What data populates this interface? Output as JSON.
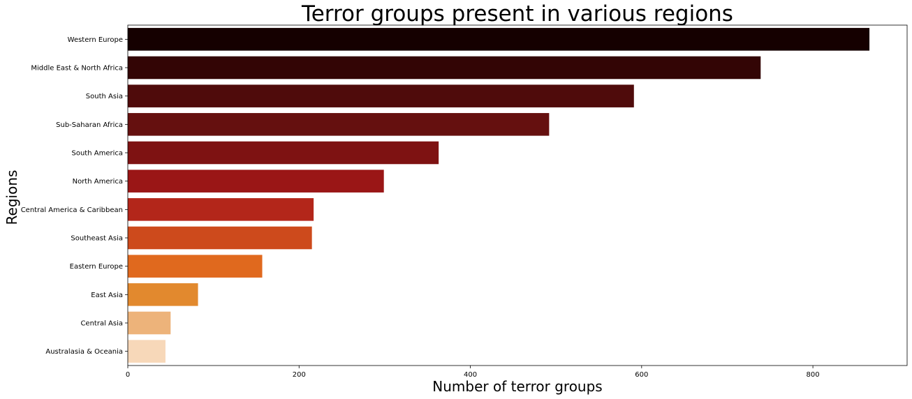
{
  "chart_data": {
    "type": "bar",
    "orientation": "horizontal",
    "title": "Terror groups present in various regions",
    "xlabel": "Number of terror groups",
    "ylabel": "Regions",
    "categories": [
      "Western Europe",
      "Middle East & North Africa",
      "South Asia",
      "Sub-Saharan Africa",
      "South America",
      "North America",
      "Central America & Caribbean",
      "Southeast Asia",
      "Eastern Europe",
      "East Asia",
      "Central Asia",
      "Australasia & Oceania"
    ],
    "values": [
      866,
      739,
      591,
      492,
      363,
      299,
      217,
      215,
      157,
      82,
      50,
      44
    ],
    "colors": [
      "#150000",
      "#330505",
      "#4f0b0b",
      "#65100f",
      "#7e1212",
      "#9a1616",
      "#b3261a",
      "#cd4a1c",
      "#e0691e",
      "#e2892e",
      "#edb37a",
      "#f7d8b9"
    ],
    "xlim": [
      0,
      910
    ],
    "xticks": [
      0,
      200,
      400,
      600,
      800
    ],
    "grid": false,
    "legend": "none"
  }
}
